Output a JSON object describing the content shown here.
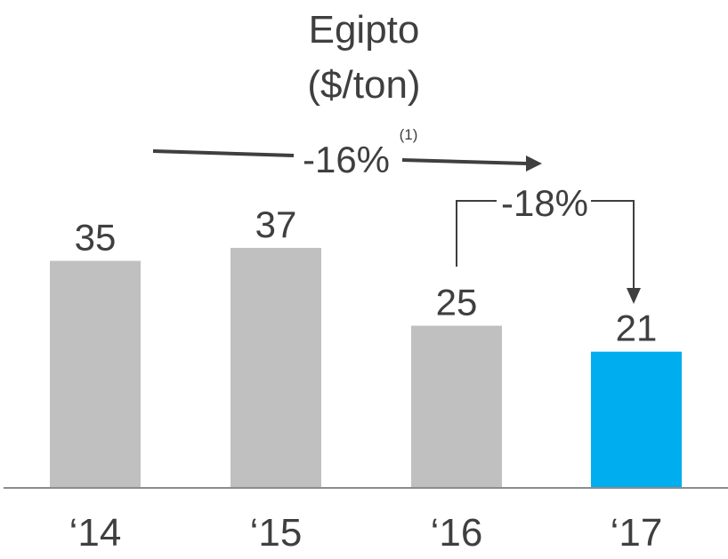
{
  "chart_data": {
    "type": "bar",
    "title": "Egipto",
    "subtitle": "($/ton)",
    "categories": [
      "‘14",
      "‘15",
      "‘16",
      "‘17"
    ],
    "values": [
      35,
      37,
      25,
      21
    ],
    "value_labels": [
      "35",
      "37",
      "25",
      "21"
    ],
    "ylim": [
      0,
      60
    ],
    "grid": false,
    "colors": {
      "default": "#c0c0c0",
      "highlight": "#00aeef",
      "axis": "#8c8c8c",
      "arrow": "#3f3f3f"
    },
    "highlight_index": 3,
    "annotations": {
      "overall_change": "-16%",
      "overall_footnote": "(1)",
      "yoy_change": "-18%"
    }
  }
}
